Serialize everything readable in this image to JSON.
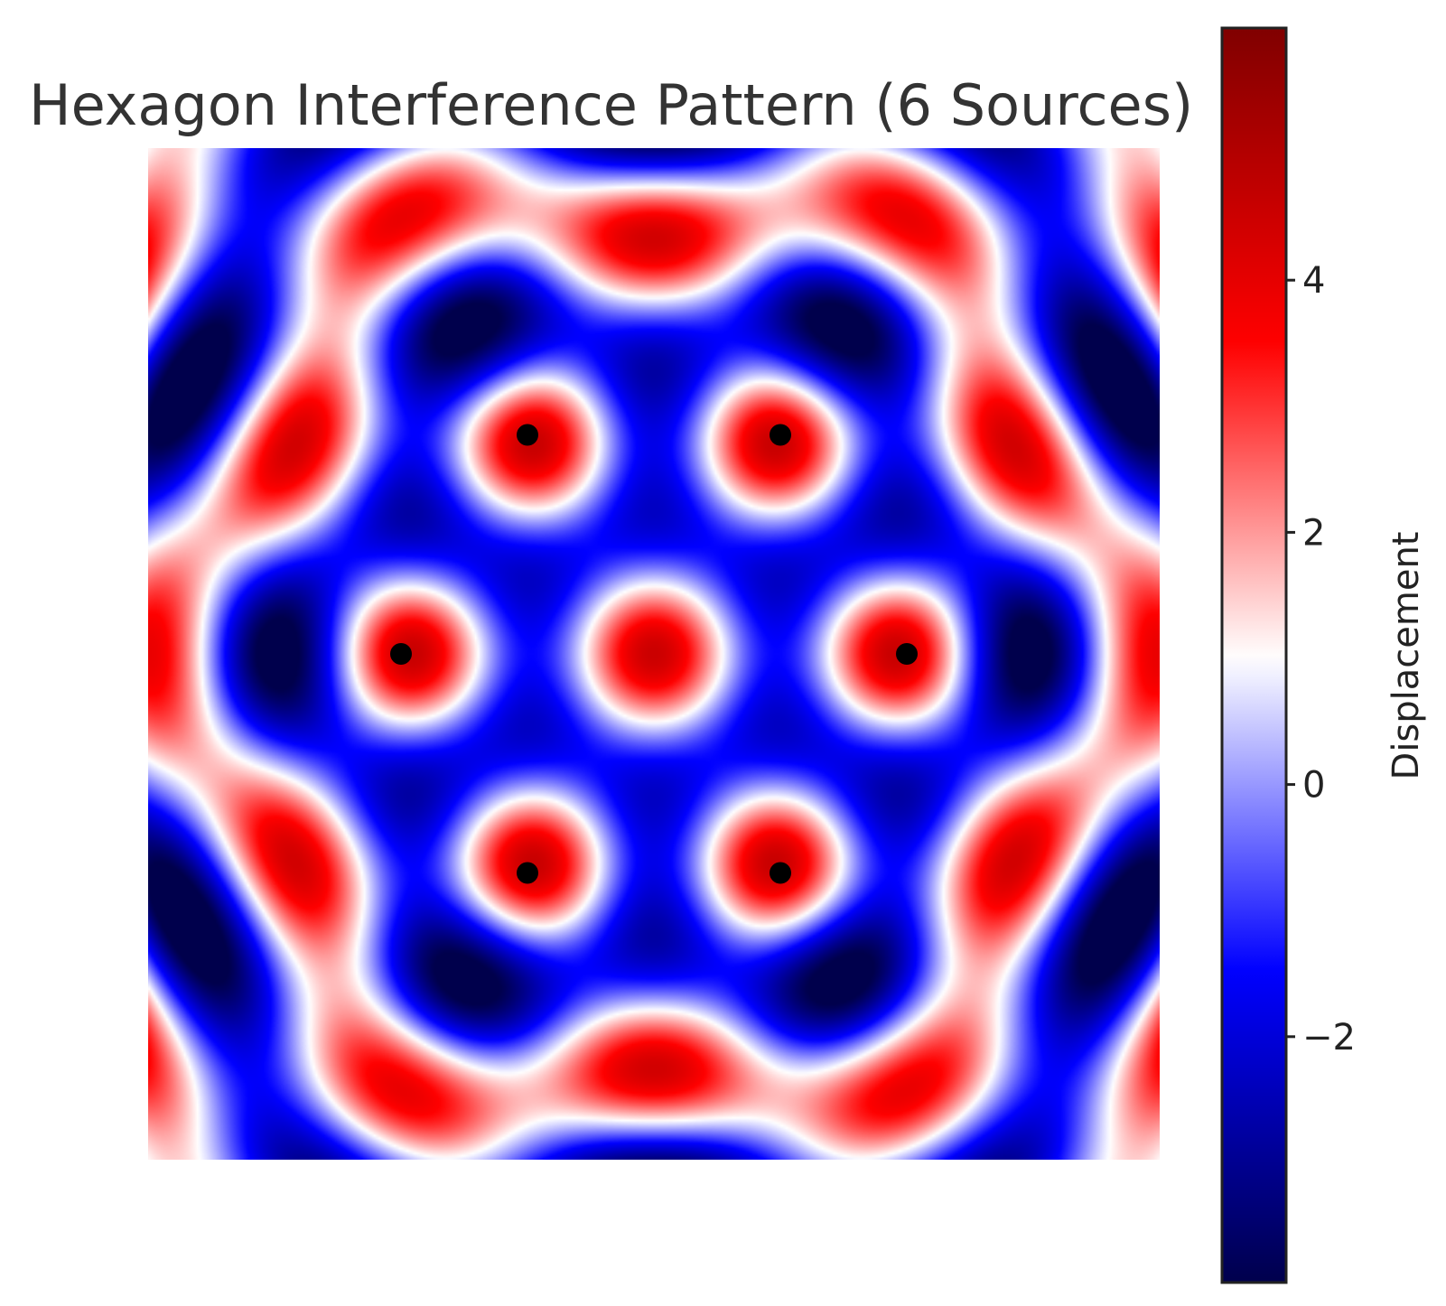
{
  "chart_data": {
    "type": "heatmap",
    "title": "Hexagon Interference Pattern (6 Sources)",
    "xlabel": "",
    "ylabel": "",
    "xlim": [
      -2,
      2
    ],
    "ylim": [
      -2,
      2
    ],
    "wavenumber": 7.0,
    "sources": [
      {
        "x": 1.0,
        "y": 0.0
      },
      {
        "x": 0.5,
        "y": 0.866
      },
      {
        "x": -0.5,
        "y": 0.866
      },
      {
        "x": -1.0,
        "y": 0.0
      },
      {
        "x": -0.5,
        "y": -0.866
      },
      {
        "x": 0.5,
        "y": -0.866
      }
    ],
    "source_marker_color": "#000000",
    "colormap": "seismic",
    "colormap_stops": [
      "#00004c",
      "#0000ff",
      "#ffffff",
      "#ff0000",
      "#800000"
    ],
    "colorbar": {
      "label": "Displacement",
      "vmin": -3.95,
      "vmax": 6.0,
      "ticks": [
        {
          "value": -2,
          "label": "−2"
        },
        {
          "value": 0,
          "label": "0"
        },
        {
          "value": 2,
          "label": "2"
        },
        {
          "value": 4,
          "label": "4"
        }
      ]
    },
    "grid": false,
    "axes_visible": false
  }
}
